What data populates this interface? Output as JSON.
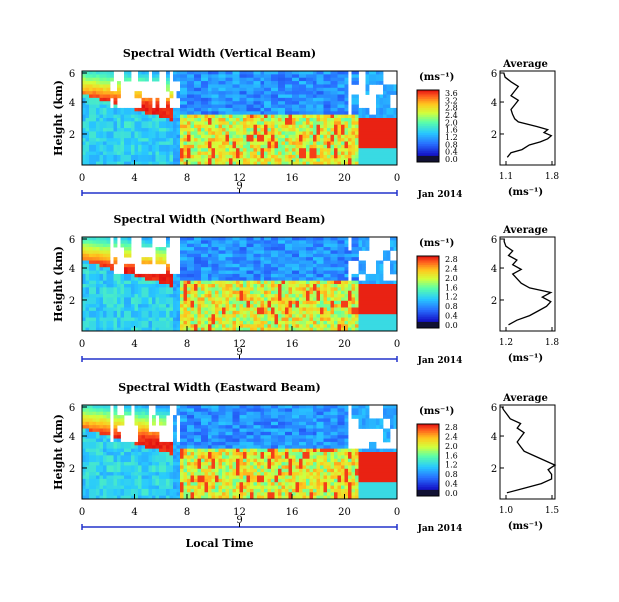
{
  "chart_data": [
    {
      "type": "heatmap",
      "title": "Spectral Width (Vertical Beam)",
      "ylabel": "Height (km)",
      "x_ticks": [
        "0",
        "4",
        "8",
        "12",
        "16",
        "20",
        "0"
      ],
      "y_ticks": [
        "6",
        "4",
        "2"
      ],
      "date_tick": "9",
      "date_label": "Jan 2014",
      "colorbar": {
        "label": "(ms⁻¹)",
        "ticks": [
          "3.6",
          "3.2",
          "2.8",
          "2.4",
          "2.0",
          "1.6",
          "1.2",
          "0.8",
          "0.4",
          "0.0"
        ]
      },
      "average": {
        "title": "Average",
        "xlabel": "(ms⁻¹)",
        "x_ticks": [
          "1.1",
          "1.8"
        ],
        "y_ticks": [
          "6",
          "4",
          "2"
        ],
        "x_range": [
          1.05,
          1.8
        ],
        "height_km": [
          0.5,
          0.8,
          1.0,
          1.3,
          1.5,
          1.7,
          1.9,
          2.1,
          2.3,
          2.5,
          2.8,
          3.0,
          3.3,
          3.6,
          3.9,
          4.2,
          4.5,
          4.8,
          5.1,
          5.4,
          5.7,
          6.0
        ],
        "value": [
          1.15,
          1.2,
          1.35,
          1.45,
          1.6,
          1.7,
          1.75,
          1.65,
          1.7,
          1.55,
          1.3,
          1.25,
          1.22,
          1.2,
          1.25,
          1.3,
          1.2,
          1.25,
          1.3,
          1.2,
          1.12,
          1.1
        ]
      }
    },
    {
      "type": "heatmap",
      "title": "Spectral Width (Northward Beam)",
      "ylabel": "Height (km)",
      "x_ticks": [
        "0",
        "4",
        "8",
        "12",
        "16",
        "20",
        "0"
      ],
      "y_ticks": [
        "6",
        "4",
        "2"
      ],
      "date_tick": "9",
      "date_label": "Jan 2014",
      "colorbar": {
        "label": "(ms⁻¹)",
        "ticks": [
          "2.8",
          "2.4",
          "2.0",
          "1.6",
          "1.2",
          "0.8",
          "0.4",
          "0.0"
        ]
      },
      "average": {
        "title": "Average",
        "xlabel": "(ms⁻¹)",
        "x_ticks": [
          "1.2",
          "1.8"
        ],
        "y_ticks": [
          "6",
          "4",
          "2"
        ],
        "x_range": [
          1.15,
          1.8
        ],
        "height_km": [
          0.4,
          0.7,
          1.0,
          1.3,
          1.6,
          1.9,
          2.2,
          2.5,
          2.8,
          3.1,
          3.4,
          3.7,
          4.0,
          4.3,
          4.6,
          4.9,
          5.2,
          5.5,
          5.8,
          6.0
        ],
        "value": [
          1.25,
          1.35,
          1.5,
          1.6,
          1.7,
          1.75,
          1.65,
          1.75,
          1.5,
          1.4,
          1.35,
          1.3,
          1.4,
          1.3,
          1.35,
          1.25,
          1.3,
          1.22,
          1.2,
          1.2
        ]
      }
    },
    {
      "type": "heatmap",
      "title": "Spectral Width (Eastward Beam)",
      "ylabel": "Height (km)",
      "xlabel": "Local Time",
      "x_ticks": [
        "0",
        "4",
        "8",
        "12",
        "16",
        "20",
        "0"
      ],
      "y_ticks": [
        "6",
        "4",
        "2"
      ],
      "date_tick": "9",
      "date_label": "Jan 2014",
      "colorbar": {
        "label": "(ms⁻¹)",
        "ticks": [
          "2.8",
          "2.4",
          "2.0",
          "1.6",
          "1.2",
          "0.8",
          "0.4",
          "0.0"
        ]
      },
      "average": {
        "title": "Average",
        "xlabel": "(ms⁻¹)",
        "x_ticks": [
          "1.0",
          "1.5"
        ],
        "y_ticks": [
          "6",
          "4",
          "2"
        ],
        "x_range": [
          0.95,
          1.75
        ],
        "height_km": [
          0.4,
          0.7,
          1.0,
          1.3,
          1.6,
          1.9,
          2.2,
          2.5,
          2.8,
          3.1,
          3.4,
          3.7,
          4.0,
          4.3,
          4.6,
          4.9,
          5.2,
          5.5,
          5.8,
          6.0
        ],
        "value": [
          1.05,
          1.3,
          1.55,
          1.7,
          1.7,
          1.65,
          1.75,
          1.6,
          1.45,
          1.3,
          1.25,
          1.2,
          1.25,
          1.3,
          1.2,
          1.25,
          1.1,
          1.05,
          1.0,
          0.98
        ]
      }
    }
  ]
}
